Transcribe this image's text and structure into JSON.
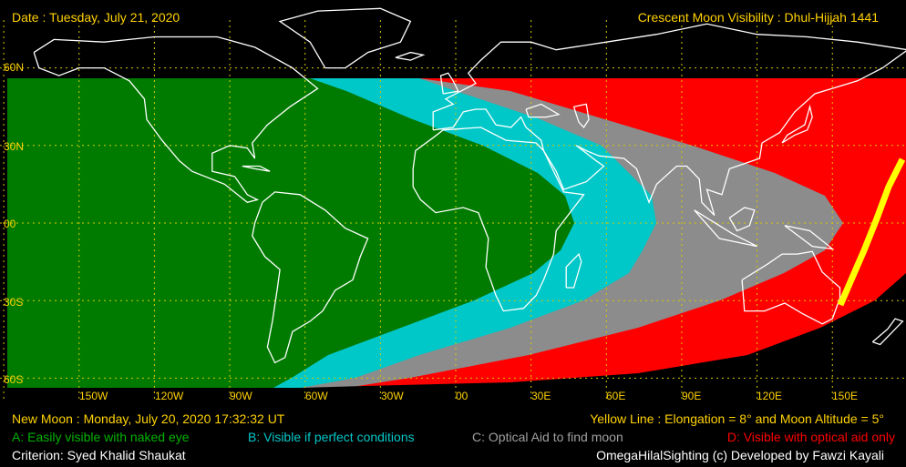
{
  "header": {
    "date": "Date : Tuesday, July 21, 2020",
    "title": "Crescent Moon Visibility : Dhul-Hijjah  1441"
  },
  "map": {
    "lat_labels": [
      "60N",
      "30N",
      "00",
      "30S",
      "60S"
    ],
    "lon_labels": [
      "150W",
      "120W",
      "90W",
      "60W",
      "30W",
      "00",
      "30E",
      "60E",
      "90E",
      "120E",
      "150E"
    ],
    "zone_colors": {
      "A": "#007b00",
      "B": "#00c8c8",
      "C": "#8c8c8c",
      "D": "#ff0000",
      "line": "#ffff00",
      "grid": "#d8c800",
      "coast": "#ffffff"
    }
  },
  "footer": {
    "new_moon": "New Moon : Monday, July 20, 2020  17:32:32  UT",
    "yellow_line": "Yellow Line : Elongation = 8° and Moon Altitude = 5°",
    "legend": {
      "a": "A: Easily visible with naked eye",
      "b": "B: Visible if perfect conditions",
      "c": "C: Optical Aid to find moon",
      "d": "D: Visible with optical aid only"
    },
    "criterion": "Criterion: Syed Khalid Shaukat",
    "credit": "OmegaHilalSighting  (c)  Developed by Fawzi Kayali"
  }
}
